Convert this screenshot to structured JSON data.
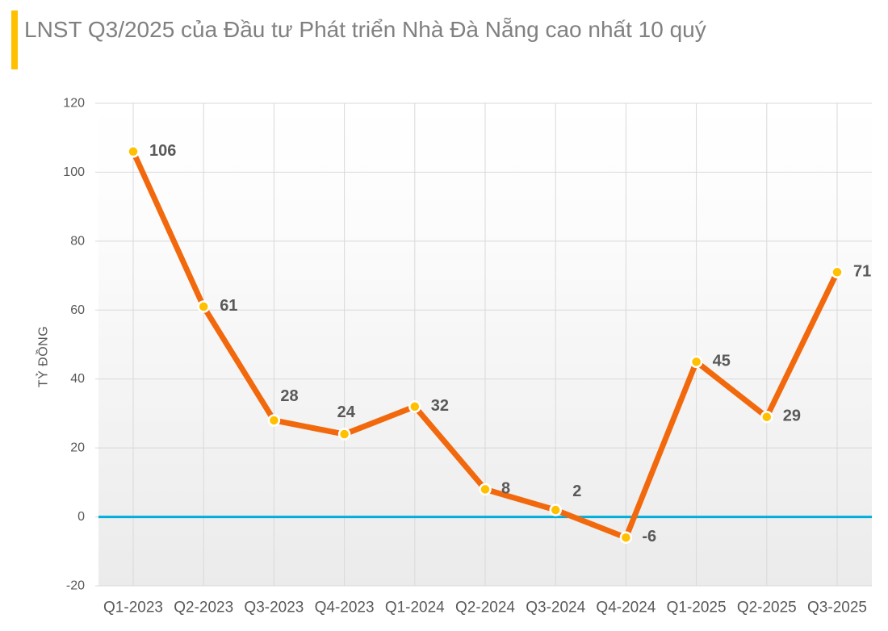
{
  "chart_data": {
    "type": "line",
    "title": "LNST Q3/2025 của Đầu tư Phát triển Nhà Đà Nẵng cao nhất 10 quý",
    "categories": [
      "Q1-2023",
      "Q2-2023",
      "Q3-2023",
      "Q4-2023",
      "Q1-2024",
      "Q2-2024",
      "Q3-2024",
      "Q4-2024",
      "Q1-2025",
      "Q2-2025",
      "Q3-2025"
    ],
    "values": [
      106,
      61,
      28,
      24,
      32,
      8,
      2,
      -6,
      45,
      29,
      71
    ],
    "ylabel": "TỶ ĐỒNG",
    "xlabel": "",
    "ylim": [
      -20,
      120
    ],
    "yticks": [
      -20,
      0,
      20,
      40,
      60,
      80,
      100,
      120
    ],
    "grid": true,
    "legend_position": "none",
    "zero_baseline": true,
    "colors": {
      "line": "#F2690D",
      "marker": "#FFC000",
      "marker_ring": "#FFFFFF",
      "zero_line": "#00AEDB",
      "gridline": "#D9D9D9",
      "value_label": "#595959",
      "axis_label": "#595959",
      "title": "#808080",
      "accent_bar": "#FFC000",
      "plot_bg_top": "#FFFFFF",
      "plot_bg_bottom": "#EBEBEB"
    }
  }
}
